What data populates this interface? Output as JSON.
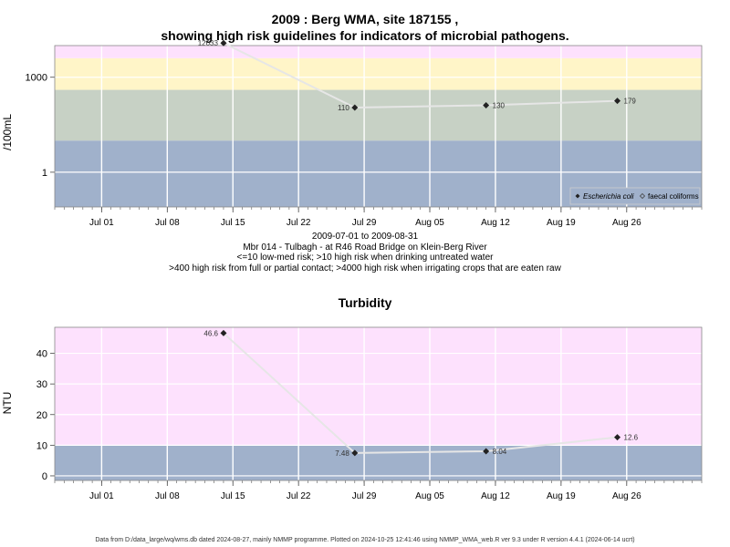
{
  "page": {
    "title_line1": "2009 : Berg WMA, site 187155 ,",
    "title_line2": "showing high risk guidelines for indicators of microbial pathogens.",
    "caption_lines": [
      "2009-07-01 to 2009-08-31",
      "Mbr 014 - Tulbagh - at R46 Road Bridge on Klein-Berg River",
      "<=10 low-med risk; >10 high risk when drinking untreated water",
      ">400 high risk from full or partial contact; >4000 high risk when irrigating crops that are eaten raw"
    ],
    "footer": "Data from D:/data_large/wq/wms.db dated 2024-08-27, mainly NMMP programme. Plotted on 2024-10-25 12:41:46 using NMMP_WMA_web.R ver 9.3 under R version 4.4.1 (2024-06-14 ucrt)"
  },
  "colors": {
    "band_blue": "#a0b1cb",
    "band_grey": "#c7d1c5",
    "band_yellow": "#fff5c8",
    "band_pink": "#fde1fd",
    "line": "#e6e6e6",
    "point": "#222222",
    "grid": "#ffffff"
  },
  "chart_data": [
    {
      "type": "line",
      "title": "",
      "ylabel": "/100mL",
      "xlabel": "",
      "y_scale": "log10",
      "ylim": [
        0.08,
        10000
      ],
      "xlim": [
        "2009-06-26",
        "2009-09-03"
      ],
      "x_ticks": [
        "2009-07-01",
        "2009-07-08",
        "2009-07-15",
        "2009-07-22",
        "2009-07-29",
        "2009-08-05",
        "2009-08-12",
        "2009-08-19",
        "2009-08-26"
      ],
      "x_tick_labels": [
        "Jul 01",
        "Jul 08",
        "Jul 15",
        "Jul 22",
        "Jul 29",
        "Aug 05",
        "Aug 12",
        "Aug 19",
        "Aug 26"
      ],
      "y_ticks": [
        1,
        1000
      ],
      "y_tick_labels": [
        "1",
        "1000"
      ],
      "bands": [
        {
          "from": 0.08,
          "to": 10,
          "color": "band_blue"
        },
        {
          "from": 10,
          "to": 400,
          "color": "band_grey"
        },
        {
          "from": 400,
          "to": 4000,
          "color": "band_yellow"
        },
        {
          "from": 4000,
          "to": 10000,
          "color": "band_pink"
        }
      ],
      "series": [
        {
          "name": "Escherichia coli",
          "x": [
            "2009-07-14",
            "2009-07-28",
            "2009-08-11",
            "2009-08-25"
          ],
          "values": [
            12033,
            110,
            130,
            179
          ],
          "labels": [
            "12033",
            "110",
            "130",
            "179"
          ]
        }
      ],
      "legend": {
        "position": "bottom-right",
        "entries": [
          "Escherichia coli",
          "faecal coliforms"
        ]
      }
    },
    {
      "type": "line",
      "title": "Turbidity",
      "ylabel": "NTU",
      "xlabel": "",
      "y_scale": "linear",
      "ylim": [
        -1.5,
        48.5
      ],
      "xlim": [
        "2009-06-26",
        "2009-09-03"
      ],
      "x_ticks": [
        "2009-07-01",
        "2009-07-08",
        "2009-07-15",
        "2009-07-22",
        "2009-07-29",
        "2009-08-05",
        "2009-08-12",
        "2009-08-19",
        "2009-08-26"
      ],
      "x_tick_labels": [
        "Jul 01",
        "Jul 08",
        "Jul 15",
        "Jul 22",
        "Jul 29",
        "Aug 05",
        "Aug 12",
        "Aug 19",
        "Aug 26"
      ],
      "y_ticks": [
        0,
        10,
        20,
        30,
        40
      ],
      "y_tick_labels": [
        "0",
        "10",
        "20",
        "30",
        "40"
      ],
      "bands": [
        {
          "from": -1.5,
          "to": 10,
          "color": "band_blue"
        },
        {
          "from": 10,
          "to": 48.5,
          "color": "band_pink"
        }
      ],
      "series": [
        {
          "name": "",
          "x": [
            "2009-07-14",
            "2009-07-28",
            "2009-08-11",
            "2009-08-25"
          ],
          "values": [
            46.6,
            7.48,
            8.04,
            12.6
          ],
          "labels": [
            "46.6",
            "7.48",
            "8.04",
            "12.6"
          ]
        }
      ]
    }
  ]
}
